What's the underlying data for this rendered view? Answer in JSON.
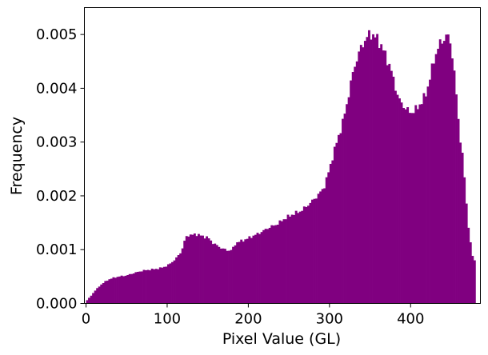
{
  "chart_data": {
    "type": "bar",
    "subtype": "histogram",
    "title": "",
    "xlabel": "Pixel Value (GL)",
    "ylabel": "Frequency",
    "xlim": [
      -2,
      486
    ],
    "ylim": [
      0,
      0.0055
    ],
    "bin_width": 2.5,
    "bar_color": "#800080",
    "grid": false,
    "legend": "none",
    "x_ticks": [
      0,
      100,
      200,
      300,
      400
    ],
    "x_tick_labels": [
      "0",
      "100",
      "200",
      "300",
      "400"
    ],
    "y_ticks": [
      0,
      0.001,
      0.002,
      0.003,
      0.004,
      0.005
    ],
    "y_tick_labels": [
      "0.000",
      "0.001",
      "0.002",
      "0.003",
      "0.004",
      "0.005"
    ],
    "key_points": [
      [
        0,
        3e-05
      ],
      [
        2,
        8e-05
      ],
      [
        5,
        0.00012
      ],
      [
        10,
        0.00022
      ],
      [
        15,
        0.0003
      ],
      [
        20,
        0.00037
      ],
      [
        25,
        0.00042
      ],
      [
        30,
        0.00046
      ],
      [
        35,
        0.00048
      ],
      [
        40,
        0.0005
      ],
      [
        50,
        0.00052
      ],
      [
        60,
        0.00057
      ],
      [
        70,
        0.00061
      ],
      [
        80,
        0.00063
      ],
      [
        90,
        0.00065
      ],
      [
        100,
        0.0007
      ],
      [
        110,
        0.00082
      ],
      [
        118,
        0.00098
      ],
      [
        122,
        0.0012
      ],
      [
        125,
        0.00127
      ],
      [
        130,
        0.00127
      ],
      [
        135,
        0.00129
      ],
      [
        140,
        0.00127
      ],
      [
        145,
        0.00124
      ],
      [
        150,
        0.00123
      ],
      [
        155,
        0.00114
      ],
      [
        165,
        0.00104
      ],
      [
        175,
        0.00098
      ],
      [
        180,
        0.001
      ],
      [
        185,
        0.00113
      ],
      [
        195,
        0.00118
      ],
      [
        205,
        0.00125
      ],
      [
        215,
        0.00132
      ],
      [
        225,
        0.00141
      ],
      [
        235,
        0.00147
      ],
      [
        245,
        0.00158
      ],
      [
        255,
        0.00166
      ],
      [
        265,
        0.00172
      ],
      [
        275,
        0.00185
      ],
      [
        285,
        0.002
      ],
      [
        293,
        0.00215
      ],
      [
        300,
        0.0025
      ],
      [
        305,
        0.0028
      ],
      [
        310,
        0.00305
      ],
      [
        315,
        0.0033
      ],
      [
        320,
        0.0036
      ],
      [
        325,
        0.004
      ],
      [
        330,
        0.00437
      ],
      [
        335,
        0.0046
      ],
      [
        340,
        0.0048
      ],
      [
        345,
        0.00492
      ],
      [
        350,
        0.00502
      ],
      [
        355,
        0.00497
      ],
      [
        360,
        0.0049
      ],
      [
        365,
        0.00475
      ],
      [
        370,
        0.00458
      ],
      [
        375,
        0.00438
      ],
      [
        380,
        0.0041
      ],
      [
        385,
        0.0038
      ],
      [
        390,
        0.0037
      ],
      [
        395,
        0.0036
      ],
      [
        400,
        0.00355
      ],
      [
        405,
        0.00358
      ],
      [
        410,
        0.00368
      ],
      [
        415,
        0.00377
      ],
      [
        420,
        0.00395
      ],
      [
        425,
        0.00428
      ],
      [
        430,
        0.0046
      ],
      [
        435,
        0.0048
      ],
      [
        440,
        0.0049
      ],
      [
        445,
        0.005
      ],
      [
        450,
        0.0048
      ],
      [
        455,
        0.0041
      ],
      [
        460,
        0.0032
      ],
      [
        465,
        0.0026
      ],
      [
        470,
        0.0016
      ],
      [
        475,
        0.00095
      ],
      [
        478,
        0.0008
      ]
    ]
  }
}
